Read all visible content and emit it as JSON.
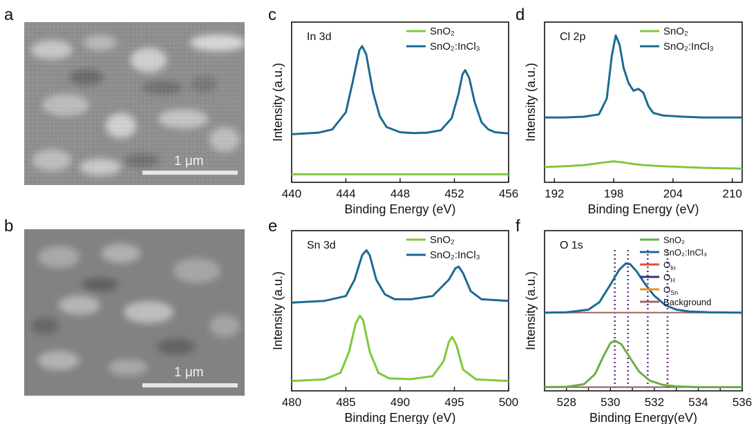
{
  "panels": {
    "a": "a",
    "b": "b",
    "c": "c",
    "d": "d",
    "e": "e",
    "f": "f"
  },
  "sem_images": [
    {
      "id": "a",
      "scale_label": "1 μm"
    },
    {
      "id": "b",
      "scale_label": "1 μm"
    }
  ],
  "colors": {
    "SnO2": "#7dc93a",
    "SnO2_InCl3": "#1b6a92",
    "O_In": "#f0463c",
    "O_H": "#3f2e80",
    "O_Sn": "#e8912a",
    "Background": "#9a6a6a",
    "SnO2_fit": "#6aae44",
    "dotted": "#6b2a8a"
  },
  "chart_data": [
    {
      "id": "c",
      "type": "line",
      "annotation": "In 3d",
      "xlabel": "Binding Energy (eV)",
      "ylabel": "Intensity (a.u.)",
      "xlim": [
        440,
        456
      ],
      "ylim": [
        -0.2,
        3.8
      ],
      "xticks": [
        440,
        444,
        448,
        452,
        456
      ],
      "legend": {
        "position": "top-right",
        "entries": [
          "SnO₂",
          "SnO₂:InCl₃"
        ]
      },
      "series": [
        {
          "name": "SnO₂",
          "color_key": "SnO2",
          "x": [
            440,
            444,
            448,
            452,
            456
          ],
          "y": [
            0,
            0,
            0,
            0,
            0
          ]
        },
        {
          "name": "SnO₂:InCl₃",
          "color_key": "SnO2_InCl3",
          "x": [
            440,
            442,
            443,
            444,
            444.5,
            445,
            445.2,
            445.5,
            446,
            446.5,
            447,
            448,
            449,
            450,
            451,
            451.8,
            452.3,
            452.6,
            452.8,
            453.1,
            453.5,
            454,
            454.5,
            455,
            456
          ],
          "y": [
            1.0,
            1.04,
            1.12,
            1.55,
            2.3,
            3.1,
            3.2,
            3.0,
            2.05,
            1.45,
            1.18,
            1.05,
            1.03,
            1.04,
            1.1,
            1.4,
            2.0,
            2.5,
            2.6,
            2.4,
            1.8,
            1.3,
            1.12,
            1.05,
            1.02
          ]
        }
      ]
    },
    {
      "id": "d",
      "type": "line",
      "annotation": "Cl 2p",
      "xlabel": "Binding Energy (eV)",
      "ylabel": "Intensity (a.u.)",
      "xlim": [
        191,
        211
      ],
      "ylim": [
        -0.4,
        3.8
      ],
      "xticks": [
        192,
        198,
        204,
        210
      ],
      "legend": {
        "position": "top-right",
        "entries": [
          "SnO₂",
          "SnO₂:InCl₃"
        ]
      },
      "series": [
        {
          "name": "SnO₂",
          "color_key": "SnO2",
          "x": [
            191,
            193,
            195,
            197,
            198,
            199,
            200,
            201,
            203,
            205,
            207,
            209,
            211
          ],
          "y": [
            0.0,
            0.02,
            0.05,
            0.12,
            0.15,
            0.12,
            0.08,
            0.05,
            0.02,
            0.0,
            -0.02,
            -0.03,
            -0.04
          ]
        },
        {
          "name": "SnO₂:InCl₃",
          "color_key": "SnO2_InCl3",
          "x": [
            191,
            193,
            195,
            196.5,
            197.3,
            197.8,
            198.2,
            198.6,
            199,
            199.5,
            200,
            200.5,
            201,
            201.5,
            202,
            203,
            205,
            207,
            209,
            211
          ],
          "y": [
            1.3,
            1.3,
            1.32,
            1.38,
            1.8,
            2.9,
            3.45,
            3.2,
            2.6,
            2.2,
            2.0,
            2.05,
            1.95,
            1.6,
            1.42,
            1.35,
            1.32,
            1.3,
            1.3,
            1.3
          ]
        }
      ]
    },
    {
      "id": "e",
      "type": "line",
      "annotation": "Sn 3d",
      "xlabel": "Binding Energy (eV)",
      "ylabel": "Intensity (a.u.)",
      "xlim": [
        480,
        500
      ],
      "ylim": [
        -0.3,
        4.6
      ],
      "xticks": [
        480,
        485,
        490,
        495,
        500
      ],
      "legend": {
        "position": "top-right",
        "entries": [
          "SnO₂",
          "SnO₂:InCl₃"
        ]
      },
      "series": [
        {
          "name": "SnO₂",
          "color_key": "SnO2",
          "x": [
            480,
            483,
            484.5,
            485.3,
            485.9,
            486.3,
            486.6,
            487.2,
            488,
            489,
            491,
            493,
            494,
            494.5,
            494.8,
            495.2,
            495.8,
            497,
            500
          ],
          "y": [
            0.0,
            0.05,
            0.25,
            0.9,
            1.75,
            2.0,
            1.85,
            0.9,
            0.25,
            0.08,
            0.06,
            0.15,
            0.6,
            1.2,
            1.35,
            1.1,
            0.35,
            0.05,
            0.0
          ]
        },
        {
          "name": "SnO₂:InCl₃",
          "color_key": "SnO2_InCl3",
          "x": [
            480,
            483,
            485,
            485.8,
            486.5,
            486.9,
            487.2,
            487.8,
            488.6,
            489.5,
            491,
            493,
            494.5,
            495.1,
            495.4,
            495.8,
            496.5,
            497.5,
            500
          ],
          "y": [
            2.4,
            2.45,
            2.6,
            3.1,
            3.85,
            4.0,
            3.85,
            3.1,
            2.65,
            2.5,
            2.5,
            2.6,
            3.1,
            3.45,
            3.5,
            3.3,
            2.75,
            2.5,
            2.45
          ]
        }
      ]
    },
    {
      "id": "f",
      "type": "line",
      "annotation": "O 1s",
      "xlabel": "Binding Energy(eV)",
      "ylabel": "Intensity (a.u.)",
      "xlim": [
        527,
        536
      ],
      "ylim": [
        -0.1,
        4.2
      ],
      "xticks": [
        528,
        529,
        530,
        531,
        532,
        533,
        534,
        535,
        536
      ],
      "xticklabels": [
        528,
        530,
        532,
        534,
        536
      ],
      "legend": {
        "position": "top-right",
        "entries": [
          "SnO₂",
          "SnO₂:InCl₃",
          "O_In",
          "O_H",
          "O_Sn",
          "Background"
        ]
      },
      "vlines": [
        530.2,
        530.8,
        531.7,
        532.6
      ],
      "series": [
        {
          "name": "SnO₂",
          "color_key": "SnO2_fit",
          "x": [
            527,
            528,
            528.8,
            529.3,
            529.7,
            530.0,
            530.2,
            530.5,
            530.9,
            531.3,
            531.8,
            532.4,
            533,
            534,
            536
          ],
          "y": [
            0.0,
            0.01,
            0.08,
            0.35,
            0.85,
            1.18,
            1.25,
            1.15,
            0.78,
            0.42,
            0.17,
            0.06,
            0.02,
            0.0,
            0.0
          ]
        },
        {
          "name": "SnO₂:InCl₃",
          "color_key": "SnO2_InCl3",
          "x": [
            527,
            528,
            529,
            529.5,
            530,
            530.4,
            530.7,
            530.9,
            531.2,
            531.6,
            532,
            532.5,
            533,
            533.6,
            534.5,
            536
          ],
          "y": [
            2.0,
            2.01,
            2.08,
            2.28,
            2.75,
            3.15,
            3.32,
            3.3,
            3.1,
            2.75,
            2.45,
            2.2,
            2.08,
            2.03,
            2.01,
            2.0
          ]
        }
      ]
    }
  ]
}
